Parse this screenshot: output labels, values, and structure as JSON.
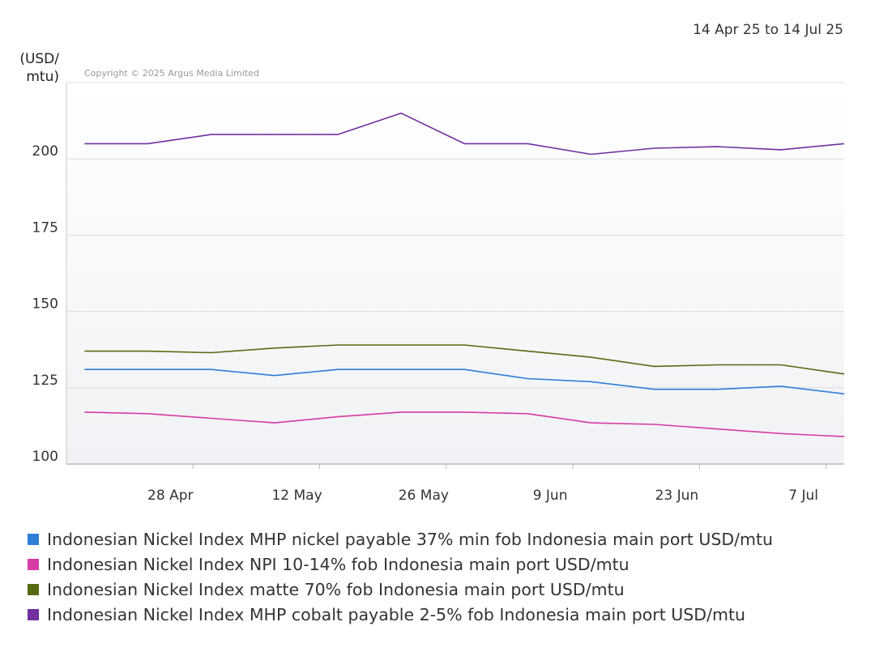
{
  "date_range": "14 Apr 25 to 14 Jul 25",
  "copyright": "Copyright © 2025 Argus Media Limited",
  "chart_data": {
    "type": "line",
    "ylabel": [
      "(USD/",
      "mtu)"
    ],
    "ylim": [
      100,
      225
    ],
    "yticks": [
      100,
      125,
      150,
      175,
      200
    ],
    "x": [
      "2025-04-16",
      "2025-04-23",
      "2025-04-30",
      "2025-05-07",
      "2025-05-14",
      "2025-05-21",
      "2025-05-28",
      "2025-06-04",
      "2025-06-11",
      "2025-06-18",
      "2025-06-25",
      "2025-07-02",
      "2025-07-09"
    ],
    "xticks": [
      {
        "date": "2025-04-28",
        "label": "28 Apr"
      },
      {
        "date": "2025-05-12",
        "label": "12 May"
      },
      {
        "date": "2025-05-26",
        "label": "26 May"
      },
      {
        "date": "2025-06-09",
        "label": "9 Jun"
      },
      {
        "date": "2025-06-23",
        "label": "23 Jun"
      },
      {
        "date": "2025-07-07",
        "label": "7 Jul"
      }
    ],
    "xlim": [
      "2025-04-14",
      "2025-07-09"
    ],
    "grid": true,
    "legend_position": "bottom",
    "series": [
      {
        "name": "Indonesian Nickel Index MHP nickel payable 37% min fob Indonesia main port USD/mtu",
        "color": "#2f7ed8",
        "values": [
          131,
          131,
          131,
          129,
          131,
          131,
          131,
          128,
          127,
          124.5,
          124.5,
          125.5,
          123
        ]
      },
      {
        "name": "Indonesian Nickel Index NPI 10-14% fob Indonesia main port USD/mtu",
        "color": "#d63ba6",
        "values": [
          117,
          116.5,
          115,
          113.5,
          115.5,
          117,
          117,
          116.5,
          113.5,
          113,
          111.5,
          110,
          109
        ]
      },
      {
        "name": "Indonesian Nickel Index matte 70% fob Indonesia main port USD/mtu",
        "color": "#556b12",
        "values": [
          137,
          137,
          136.5,
          138,
          139,
          139,
          139,
          137,
          135,
          132,
          132.5,
          132.5,
          129.5
        ]
      },
      {
        "name": "Indonesian Nickel Index MHP cobalt payable 2-5% fob Indonesia main port USD/mtu",
        "color": "#7030a0",
        "values": [
          205,
          205,
          208,
          208,
          208,
          215,
          205,
          205,
          201.5,
          203.5,
          204,
          203,
          205
        ]
      }
    ]
  }
}
